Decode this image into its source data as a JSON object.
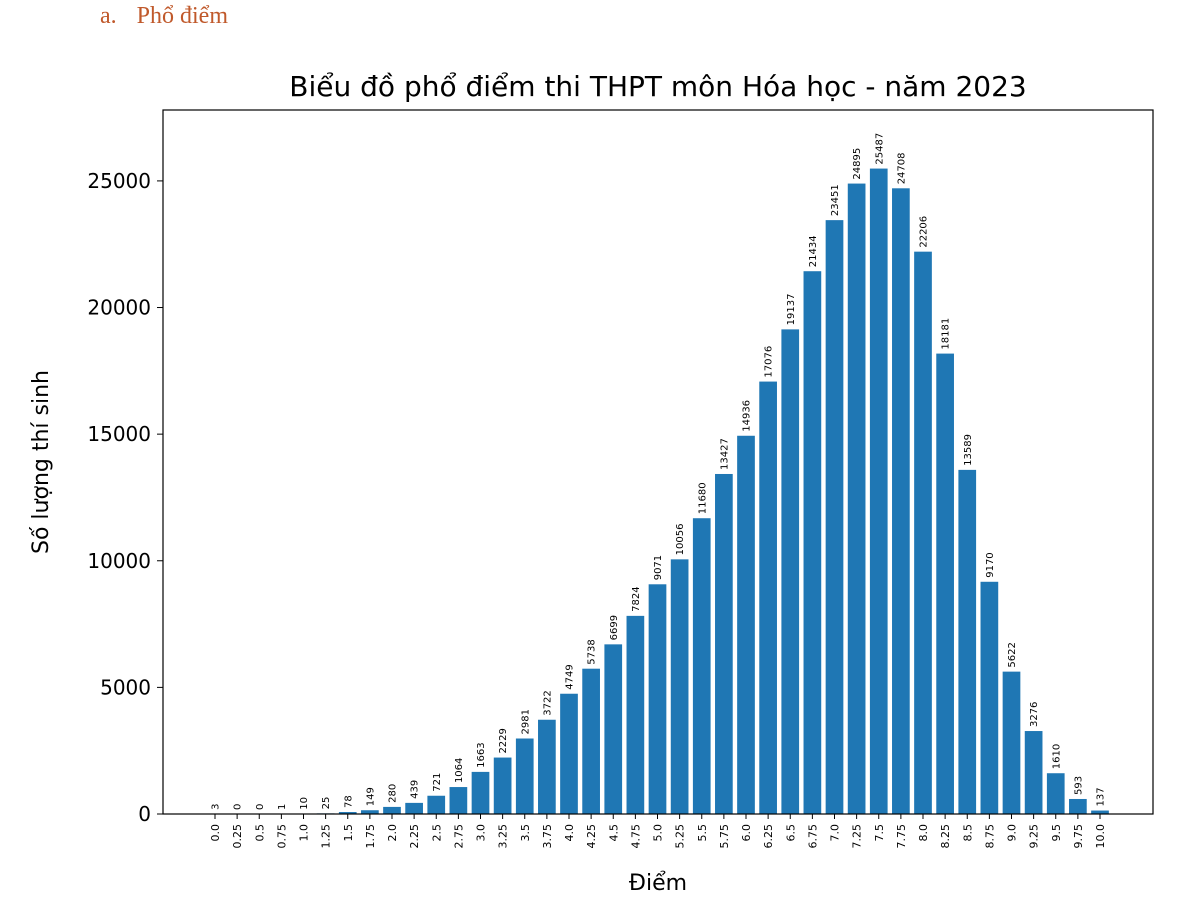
{
  "heading": {
    "marker": "a.",
    "text": "Phổ điểm"
  },
  "chart_data": {
    "type": "bar",
    "title": "Biểu đồ phổ điểm thi THPT môn Hóa học - năm 2023",
    "xlabel": "Điểm",
    "ylabel": "Số lượng thí sinh",
    "categories": [
      "0.0",
      "0.25",
      "0.5",
      "0.75",
      "1.0",
      "1.25",
      "1.5",
      "1.75",
      "2.0",
      "2.25",
      "2.5",
      "2.75",
      "3.0",
      "3.25",
      "3.5",
      "3.75",
      "4.0",
      "4.25",
      "4.5",
      "4.75",
      "5.0",
      "5.25",
      "5.5",
      "5.75",
      "6.0",
      "6.25",
      "6.5",
      "6.75",
      "7.0",
      "7.25",
      "7.5",
      "7.75",
      "8.0",
      "8.25",
      "8.5",
      "8.75",
      "9.0",
      "9.25",
      "9.5",
      "9.75",
      "10.0"
    ],
    "values": [
      3,
      0,
      0,
      1,
      10,
      25,
      78,
      149,
      280,
      439,
      721,
      1064,
      1663,
      2229,
      2981,
      3722,
      4749,
      5738,
      6699,
      7824,
      9071,
      10056,
      11680,
      13427,
      14936,
      17076,
      19137,
      21434,
      23451,
      24895,
      25487,
      24708,
      22206,
      18181,
      13589,
      9170,
      5622,
      3276,
      1610,
      593,
      137
    ],
    "yticks": [
      0,
      5000,
      10000,
      15000,
      20000,
      25000
    ],
    "ylim": [
      0,
      27800
    ],
    "bar_color": "#1f77b4",
    "grid": false,
    "legend": "none"
  }
}
